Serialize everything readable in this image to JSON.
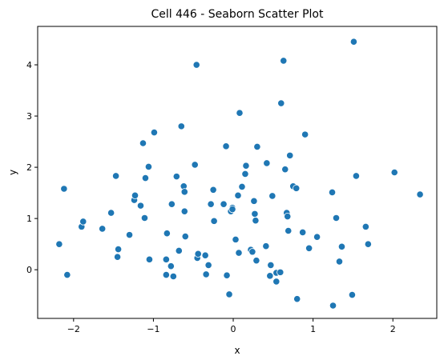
{
  "chart_data": {
    "type": "scatter",
    "title": "Cell 446 - Seaborn Scatter Plot",
    "xlabel": "x",
    "ylabel": "y",
    "xlim": [
      -2.45,
      2.55
    ],
    "ylim": [
      -0.95,
      4.75
    ],
    "xticks": [
      -2,
      -1,
      0,
      1,
      2
    ],
    "yticks": [
      0,
      1,
      2,
      3,
      4
    ],
    "grid": false,
    "legend": "none",
    "point_color": "#1f77b4",
    "series": [
      {
        "points": [
          [
            -2.18,
            0.5
          ],
          [
            -2.12,
            1.58
          ],
          [
            -2.08,
            -0.1
          ],
          [
            -1.9,
            0.84
          ],
          [
            -1.88,
            0.94
          ],
          [
            -1.64,
            0.8
          ],
          [
            -1.53,
            1.11
          ],
          [
            -1.47,
            1.83
          ],
          [
            -1.45,
            0.25
          ],
          [
            -1.44,
            0.4
          ],
          [
            -1.3,
            0.68
          ],
          [
            -1.24,
            1.36
          ],
          [
            -1.23,
            1.45
          ],
          [
            -1.16,
            1.25
          ],
          [
            -1.13,
            2.47
          ],
          [
            -1.11,
            1.01
          ],
          [
            -1.1,
            1.79
          ],
          [
            -1.06,
            2.01
          ],
          [
            -1.05,
            0.2
          ],
          [
            -0.99,
            2.68
          ],
          [
            -0.84,
            0.2
          ],
          [
            -0.84,
            -0.1
          ],
          [
            -0.83,
            0.71
          ],
          [
            -0.78,
            0.07
          ],
          [
            -0.77,
            1.28
          ],
          [
            -0.75,
            -0.13
          ],
          [
            -0.71,
            1.82
          ],
          [
            -0.68,
            0.37
          ],
          [
            -0.65,
            2.8
          ],
          [
            -0.62,
            1.63
          ],
          [
            -0.61,
            1.52
          ],
          [
            -0.61,
            1.14
          ],
          [
            -0.6,
            0.65
          ],
          [
            -0.48,
            2.05
          ],
          [
            -0.46,
            4.0
          ],
          [
            -0.45,
            0.23
          ],
          [
            -0.44,
            0.31
          ],
          [
            -0.35,
            0.28
          ],
          [
            -0.34,
            -0.09
          ],
          [
            -0.31,
            0.09
          ],
          [
            -0.28,
            1.28
          ],
          [
            -0.25,
            1.56
          ],
          [
            -0.24,
            0.95
          ],
          [
            -0.12,
            1.28
          ],
          [
            -0.09,
            2.41
          ],
          [
            -0.08,
            -0.11
          ],
          [
            -0.05,
            -0.48
          ],
          [
            -0.03,
            1.14
          ],
          [
            -0.01,
            1.21
          ],
          [
            -0.01,
            1.18
          ],
          [
            0.03,
            0.59
          ],
          [
            0.06,
            1.45
          ],
          [
            0.07,
            0.33
          ],
          [
            0.08,
            3.06
          ],
          [
            0.11,
            1.62
          ],
          [
            0.15,
            1.87
          ],
          [
            0.16,
            2.03
          ],
          [
            0.22,
            0.39
          ],
          [
            0.24,
            0.35
          ],
          [
            0.26,
            1.34
          ],
          [
            0.27,
            1.09
          ],
          [
            0.28,
            0.96
          ],
          [
            0.29,
            0.18
          ],
          [
            0.3,
            2.4
          ],
          [
            0.41,
            0.46
          ],
          [
            0.42,
            2.08
          ],
          [
            0.46,
            -0.12
          ],
          [
            0.47,
            0.09
          ],
          [
            0.49,
            1.44
          ],
          [
            0.54,
            -0.06
          ],
          [
            0.54,
            -0.23
          ],
          [
            0.59,
            -0.05
          ],
          [
            0.6,
            3.25
          ],
          [
            0.63,
            4.08
          ],
          [
            0.65,
            1.96
          ],
          [
            0.67,
            1.11
          ],
          [
            0.68,
            1.04
          ],
          [
            0.69,
            0.76
          ],
          [
            0.71,
            2.23
          ],
          [
            0.75,
            1.63
          ],
          [
            0.79,
            1.59
          ],
          [
            0.8,
            -0.57
          ],
          [
            0.87,
            0.73
          ],
          [
            0.9,
            2.64
          ],
          [
            0.95,
            0.42
          ],
          [
            1.05,
            0.64
          ],
          [
            1.24,
            1.51
          ],
          [
            1.25,
            -0.7
          ],
          [
            1.29,
            1.01
          ],
          [
            1.33,
            0.16
          ],
          [
            1.36,
            0.45
          ],
          [
            1.49,
            -0.49
          ],
          [
            1.51,
            4.45
          ],
          [
            1.54,
            1.83
          ],
          [
            1.66,
            0.84
          ],
          [
            1.69,
            0.5
          ],
          [
            2.02,
            1.9
          ],
          [
            2.34,
            1.47
          ]
        ]
      }
    ]
  }
}
